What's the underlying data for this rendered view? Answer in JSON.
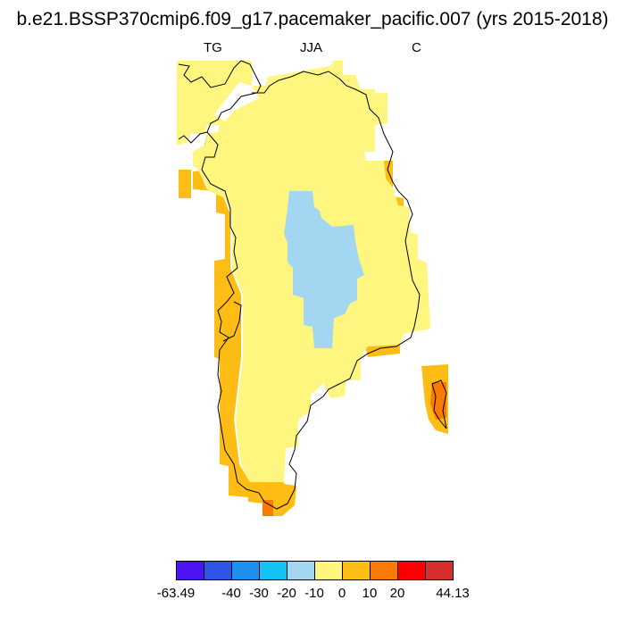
{
  "title": "b.e21.BSSP370cmip6.f09_g17.pacemaker_pacific.007 (yrs 2015-2018)",
  "labels": {
    "left": "TG",
    "center": "JJA",
    "right": "C"
  },
  "colorbar": {
    "colors": [
      "#4a14f5",
      "#2f55e6",
      "#1e8fef",
      "#14c3f6",
      "#a3d6f0",
      "#fff680",
      "#fdbd14",
      "#fb7a04",
      "#fb0000",
      "#d62d2d"
    ],
    "tick_labels": [
      "-63.49",
      "-40",
      "-30",
      "-20",
      "-10",
      "0",
      "10",
      "20",
      "44.13"
    ]
  },
  "map_colors": {
    "yellow": "#fff680",
    "light_blue": "#a3d6f0",
    "orange": "#fdbd14",
    "dark_orange": "#fb7a04",
    "coast": "#000000"
  }
}
